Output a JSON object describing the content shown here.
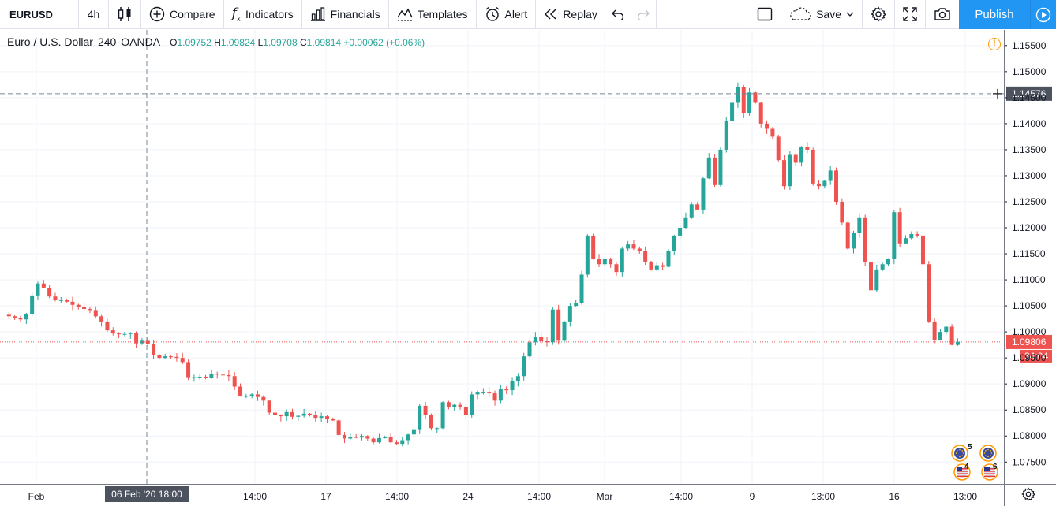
{
  "toolbar": {
    "symbol": "EURUSD",
    "interval": "4h",
    "compare": "Compare",
    "indicators": "Indicators",
    "financials": "Financials",
    "templates": "Templates",
    "alert": "Alert",
    "replay": "Replay",
    "save": "Save",
    "publish": "Publish"
  },
  "legend": {
    "title": "Euro / U.S. Dollar",
    "interval": "240",
    "source": "OANDA",
    "o_label": "O",
    "o": "1.09752",
    "h_label": "H",
    "h": "1.09824",
    "l_label": "L",
    "l": "1.09708",
    "c_label": "C",
    "c": "1.09814",
    "change": "+0.00062 (+0.06%)"
  },
  "crosshair": {
    "price": "1.14576",
    "date": "06 Feb '20",
    "time": "18:00"
  },
  "last_price": {
    "price": "1.09806",
    "countdown": "34:04"
  },
  "events": {
    "eu_count": "5",
    "us_count_1": "4",
    "us_count_2": "6"
  },
  "colors": {
    "up": "#26a69a",
    "down": "#ef5350",
    "grid": "#f0f3fa",
    "accent": "#2196f3"
  },
  "chart_data": {
    "type": "candlestick",
    "symbol": "EURUSD",
    "timeframe": "4h",
    "y_ticks": [
      "1.07500",
      "1.08000",
      "1.08500",
      "1.09000",
      "1.09500",
      "1.10000",
      "1.10500",
      "1.11000",
      "1.11500",
      "1.12000",
      "1.12500",
      "1.13000",
      "1.13500",
      "1.14000",
      "1.14500",
      "1.15000",
      "1.15500"
    ],
    "ylim": [
      1.0708,
      1.158
    ],
    "x_ticks": [
      "Feb",
      "14:00",
      "17",
      "14:00",
      "24",
      "14:00",
      "Mar",
      "14:00",
      "9",
      "13:00",
      "16",
      "13:00"
    ],
    "close_path": [
      [
        0,
        1.1033
      ],
      [
        1,
        1.103
      ],
      [
        2,
        1.1026
      ],
      [
        3,
        1.1024
      ],
      [
        4,
        1.1035
      ],
      [
        5,
        1.107
      ],
      [
        6,
        1.1093
      ],
      [
        7,
        1.1085
      ],
      [
        8,
        1.1068
      ],
      [
        9,
        1.1061
      ],
      [
        10,
        1.1061
      ],
      [
        11,
        1.1058
      ],
      [
        12,
        1.1052
      ],
      [
        13,
        1.1048
      ],
      [
        14,
        1.1044
      ],
      [
        15,
        1.1042
      ],
      [
        16,
        1.103
      ],
      [
        17,
        1.102
      ],
      [
        18,
        1.1003
      ],
      [
        19,
        1.0997
      ],
      [
        20,
        1.0996
      ],
      [
        21,
        1.0996
      ],
      [
        22,
        1.0998
      ],
      [
        23,
        1.0978
      ],
      [
        24,
        1.0983
      ],
      [
        25,
        1.0977
      ],
      [
        26,
        1.0955
      ],
      [
        27,
        1.095
      ],
      [
        28,
        1.0953
      ],
      [
        29,
        1.0952
      ],
      [
        30,
        1.095
      ],
      [
        31,
        1.0942
      ],
      [
        32,
        1.0913
      ],
      [
        33,
        1.0913
      ],
      [
        34,
        1.0914
      ],
      [
        35,
        1.0912
      ],
      [
        36,
        1.092
      ],
      [
        37,
        1.0918
      ],
      [
        38,
        1.0917
      ],
      [
        39,
        1.0915
      ],
      [
        40,
        1.0895
      ],
      [
        41,
        1.0877
      ],
      [
        42,
        1.0877
      ],
      [
        43,
        1.088
      ],
      [
        44,
        1.0875
      ],
      [
        45,
        1.0868
      ],
      [
        46,
        1.0845
      ],
      [
        47,
        1.084
      ],
      [
        48,
        1.0838
      ],
      [
        49,
        1.0846
      ],
      [
        50,
        1.0837
      ],
      [
        51,
        1.0839
      ],
      [
        52,
        1.0843
      ],
      [
        53,
        1.084
      ],
      [
        54,
        1.0835
      ],
      [
        55,
        1.0838
      ],
      [
        56,
        1.0833
      ],
      [
        57,
        1.083
      ],
      [
        58,
        1.0802
      ],
      [
        59,
        1.0795
      ],
      [
        60,
        1.0798
      ],
      [
        61,
        1.0797
      ],
      [
        62,
        1.08
      ],
      [
        63,
        1.0795
      ],
      [
        64,
        1.0788
      ],
      [
        65,
        1.0796
      ],
      [
        66,
        1.0798
      ],
      [
        67,
        1.0788
      ],
      [
        68,
        1.0785
      ],
      [
        69,
        1.0792
      ],
      [
        70,
        1.0803
      ],
      [
        71,
        1.0813
      ],
      [
        72,
        1.0858
      ],
      [
        73,
        1.084
      ],
      [
        74,
        1.0815
      ],
      [
        75,
        1.0815
      ],
      [
        76,
        1.0865
      ],
      [
        77,
        1.0855
      ],
      [
        78,
        1.086
      ],
      [
        79,
        1.0855
      ],
      [
        80,
        1.084
      ],
      [
        81,
        1.088
      ],
      [
        82,
        1.0885
      ],
      [
        83,
        1.0885
      ],
      [
        84,
        1.0882
      ],
      [
        85,
        1.0868
      ],
      [
        86,
        1.089
      ],
      [
        87,
        1.0888
      ],
      [
        88,
        1.0905
      ],
      [
        89,
        1.0915
      ],
      [
        90,
        1.0953
      ],
      [
        91,
        1.098
      ],
      [
        92,
        1.099
      ],
      [
        93,
        1.0982
      ],
      [
        94,
        1.098
      ],
      [
        95,
        1.1043
      ],
      [
        96,
        1.0983
      ],
      [
        97,
        1.102
      ],
      [
        98,
        1.105
      ],
      [
        99,
        1.1055
      ],
      [
        100,
        1.111
      ],
      [
        101,
        1.1185
      ],
      [
        102,
        1.114
      ],
      [
        103,
        1.113
      ],
      [
        104,
        1.114
      ],
      [
        105,
        1.113
      ],
      [
        106,
        1.1115
      ],
      [
        107,
        1.116
      ],
      [
        108,
        1.1168
      ],
      [
        109,
        1.116
      ],
      [
        110,
        1.1155
      ],
      [
        111,
        1.1135
      ],
      [
        112,
        1.112
      ],
      [
        113,
        1.1128
      ],
      [
        114,
        1.1125
      ],
      [
        115,
        1.1155
      ],
      [
        116,
        1.1185
      ],
      [
        117,
        1.12
      ],
      [
        118,
        1.122
      ],
      [
        119,
        1.1245
      ],
      [
        120,
        1.1235
      ],
      [
        121,
        1.1295
      ],
      [
        122,
        1.1335
      ],
      [
        123,
        1.1282
      ],
      [
        124,
        1.135
      ],
      [
        125,
        1.1405
      ],
      [
        126,
        1.144
      ],
      [
        127,
        1.147
      ],
      [
        128,
        1.142
      ],
      [
        129,
        1.146
      ],
      [
        130,
        1.144
      ],
      [
        131,
        1.14
      ],
      [
        132,
        1.139
      ],
      [
        133,
        1.1375
      ],
      [
        134,
        1.133
      ],
      [
        135,
        1.128
      ],
      [
        136,
        1.134
      ],
      [
        137,
        1.1325
      ],
      [
        138,
        1.1355
      ],
      [
        139,
        1.135
      ],
      [
        140,
        1.1285
      ],
      [
        141,
        1.128
      ],
      [
        142,
        1.129
      ],
      [
        143,
        1.131
      ],
      [
        144,
        1.125
      ],
      [
        145,
        1.121
      ],
      [
        146,
        1.116
      ],
      [
        147,
        1.119
      ],
      [
        148,
        1.122
      ],
      [
        149,
        1.1135
      ],
      [
        150,
        1.108
      ],
      [
        151,
        1.112
      ],
      [
        152,
        1.113
      ],
      [
        153,
        1.114
      ],
      [
        154,
        1.123
      ],
      [
        155,
        1.117
      ],
      [
        156,
        1.118
      ],
      [
        157,
        1.1188
      ],
      [
        158,
        1.1185
      ],
      [
        159,
        1.113
      ],
      [
        160,
        1.102
      ],
      [
        161,
        1.0985
      ],
      [
        162,
        1.1
      ],
      [
        163,
        1.101
      ],
      [
        164,
        1.0975
      ],
      [
        165,
        1.0981
      ]
    ]
  }
}
